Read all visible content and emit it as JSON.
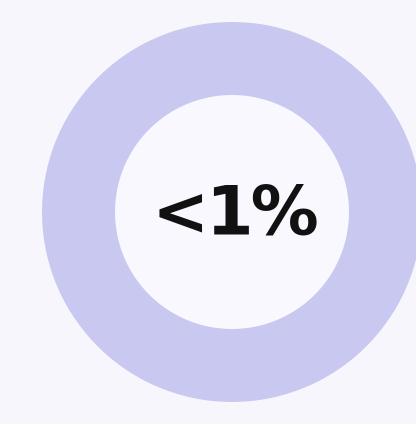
{
  "label": "<1%"
}
